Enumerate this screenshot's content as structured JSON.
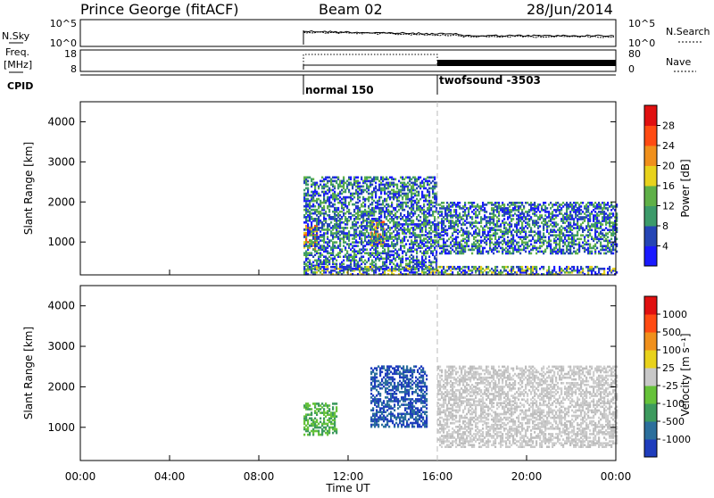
{
  "header": {
    "station": "Prince George (fitACF)",
    "beam": "Beam 02",
    "date": "28/Jun/2014"
  },
  "noise_panel": {
    "left_label": "N.Sky",
    "right_label": "N.Search",
    "left_ticks": [
      "10^5",
      "10^0"
    ],
    "right_ticks": [
      "10^5",
      "10^0"
    ]
  },
  "freq_panel": {
    "left_label_1": "Freq.",
    "left_label_2": "[MHz]",
    "right_label": "Nave",
    "left_ticks": [
      "18",
      "8"
    ],
    "right_ticks": [
      "80",
      "0"
    ]
  },
  "cpid": {
    "label": "CPID",
    "segments": [
      {
        "name": "normal 150",
        "start": 10.0
      },
      {
        "name": "twofsound -3503",
        "start": 16.0
      }
    ]
  },
  "chart_data": [
    {
      "type": "heatmap",
      "panel": "power",
      "ylabel": "Slant Range [km]",
      "xlabel": "",
      "ylim": [
        180,
        4500
      ],
      "yticks": [
        1000,
        2000,
        3000,
        4000
      ],
      "xlim": [
        0,
        24
      ],
      "colorbar": {
        "label": "Power [dB]",
        "ticks": [
          "28",
          "24",
          "20",
          "16",
          "12",
          "8",
          "4"
        ],
        "colors": [
          "#1a1aff",
          "#2545b5",
          "#3c9a6a",
          "#5fb048",
          "#e8d21c",
          "#f0901c",
          "#ff4b13",
          "#e01010"
        ]
      },
      "data_start_hour": 10.0,
      "regions_hours_km": [
        {
          "t": [
            10.0,
            10.6
          ],
          "r": [
            800,
            1400
          ],
          "level": "high"
        },
        {
          "t": [
            13.0,
            13.6
          ],
          "r": [
            900,
            1500
          ],
          "level": "high"
        },
        {
          "t": [
            10.0,
            16.0
          ],
          "r": [
            300,
            2600
          ],
          "level": "mid"
        },
        {
          "t": [
            16.0,
            24.0
          ],
          "r": [
            700,
            2000
          ],
          "level": "mid"
        },
        {
          "t": [
            10.0,
            24.0
          ],
          "r": [
            180,
            400
          ],
          "level": "low"
        }
      ]
    },
    {
      "type": "heatmap",
      "panel": "velocity",
      "ylabel": "Slant Range [km]",
      "xlabel": "Time UT",
      "ylim": [
        180,
        4500
      ],
      "yticks": [
        1000,
        2000,
        3000,
        4000
      ],
      "xlim": [
        0,
        24
      ],
      "xticks": [
        "00:00",
        "04:00",
        "08:00",
        "12:00",
        "16:00",
        "20:00",
        "00:00"
      ],
      "colorbar": {
        "label": "Velocity [m s⁻¹]",
        "ticks": [
          "1000",
          "500",
          "100",
          "25",
          "-25",
          "-100",
          "-500",
          "-1000"
        ],
        "colors": [
          "#1f3dbd",
          "#2c6f9c",
          "#3d9a5e",
          "#66c23a",
          "#c8c8c8",
          "#e8d21c",
          "#f0901c",
          "#ff4b13",
          "#e01010"
        ]
      },
      "data_start_hour": 10.0,
      "regions_hours_km": [
        {
          "t": [
            10.0,
            11.5
          ],
          "r": [
            800,
            1600
          ],
          "level": "green"
        },
        {
          "t": [
            13.0,
            15.5
          ],
          "r": [
            1000,
            2500
          ],
          "level": "blue"
        },
        {
          "t": [
            16.0,
            24.0
          ],
          "r": [
            500,
            2500
          ],
          "level": "gray"
        }
      ]
    }
  ]
}
